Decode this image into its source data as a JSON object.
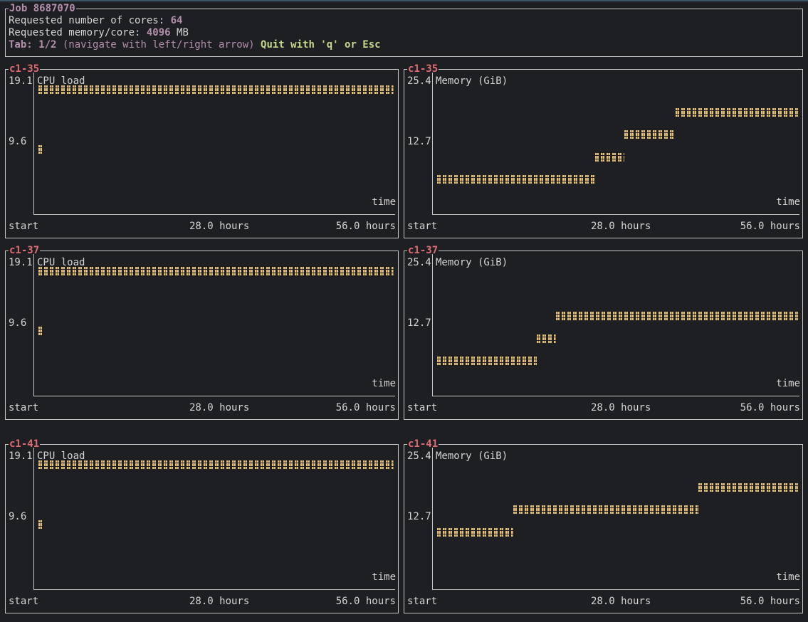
{
  "job": {
    "title": "Job 8687070",
    "cores_label": "Requested number of cores: ",
    "cores_value": "64",
    "mem_label": "Requested memory/core: ",
    "mem_value": "4096",
    "mem_unit": " MB",
    "tab_label": "Tab: 1/2",
    "tab_hint": " (navigate with left/right arrow) ",
    "quit_text": "Quit with 'q' or Esc"
  },
  "colors": {
    "bar": "#e5c07b",
    "node_title": "#e06c75",
    "accent": "#b48ead",
    "quit": "#c3d88a"
  },
  "x_axis": {
    "start": "start",
    "mid": "28.0 hours",
    "end": "56.0 hours",
    "label": "time",
    "max_hours": 56
  },
  "rows": [
    {
      "node": "c1-35",
      "cpu": {
        "title": "CPU load",
        "ymax_label": "19.1",
        "ymid_label": "9.6",
        "ymax": 19.1
      },
      "mem": {
        "title": "Memory (GiB)",
        "ymax_label": "25.4",
        "ymid_label": "12.7",
        "ymax": 25.4
      }
    },
    {
      "node": "c1-37",
      "cpu": {
        "title": "CPU load",
        "ymax_label": "19.1",
        "ymid_label": "9.6",
        "ymax": 19.1
      },
      "mem": {
        "title": "Memory (GiB)",
        "ymax_label": "25.4",
        "ymid_label": "12.7",
        "ymax": 25.4
      }
    },
    {
      "node": "c1-41",
      "cpu": {
        "title": "CPU load",
        "ymax_label": "19.1",
        "ymid_label": "9.6",
        "ymax": 19.1
      },
      "mem": {
        "title": "Memory (GiB)",
        "ymax_label": "25.4",
        "ymid_label": "12.7",
        "ymax": 25.4
      }
    }
  ],
  "chart_data": [
    {
      "type": "line",
      "node": "c1-35",
      "title": "CPU load",
      "xlabel": "time",
      "ylim": [
        0,
        19.1
      ],
      "segments": [
        {
          "x": [
            0,
            0.6
          ],
          "y": 9.6
        },
        {
          "x": [
            0,
            56
          ],
          "y": 19.1
        }
      ]
    },
    {
      "type": "line",
      "node": "c1-35",
      "title": "Memory (GiB)",
      "xlabel": "time",
      "ylim": [
        0,
        25.4
      ],
      "segments": [
        {
          "x": [
            0,
            24.5
          ],
          "y": 6.35
        },
        {
          "x": [
            24.5,
            29
          ],
          "y": 11.1
        },
        {
          "x": [
            29,
            37
          ],
          "y": 15.9
        },
        {
          "x": [
            37,
            56
          ],
          "y": 20.6
        }
      ]
    },
    {
      "type": "line",
      "node": "c1-37",
      "title": "CPU load",
      "xlabel": "time",
      "ylim": [
        0,
        19.1
      ],
      "segments": [
        {
          "x": [
            0,
            0.6
          ],
          "y": 9.6
        },
        {
          "x": [
            0,
            56
          ],
          "y": 19.1
        }
      ]
    },
    {
      "type": "line",
      "node": "c1-37",
      "title": "Memory (GiB)",
      "xlabel": "time",
      "ylim": [
        0,
        25.4
      ],
      "segments": [
        {
          "x": [
            0,
            15.5
          ],
          "y": 6.35
        },
        {
          "x": [
            15.5,
            18.5
          ],
          "y": 11.1
        },
        {
          "x": [
            18.5,
            56
          ],
          "y": 15.9
        }
      ]
    },
    {
      "type": "line",
      "node": "c1-41",
      "title": "CPU load",
      "xlabel": "time",
      "ylim": [
        0,
        19.1
      ],
      "segments": [
        {
          "x": [
            0,
            0.6
          ],
          "y": 9.6
        },
        {
          "x": [
            0,
            56
          ],
          "y": 19.1
        }
      ]
    },
    {
      "type": "line",
      "node": "c1-41",
      "title": "Memory (GiB)",
      "xlabel": "time",
      "ylim": [
        0,
        25.4
      ],
      "segments": [
        {
          "x": [
            0,
            11.8
          ],
          "y": 11.1
        },
        {
          "x": [
            11.8,
            40.5
          ],
          "y": 15.9
        },
        {
          "x": [
            40.5,
            56
          ],
          "y": 20.6
        }
      ]
    }
  ]
}
